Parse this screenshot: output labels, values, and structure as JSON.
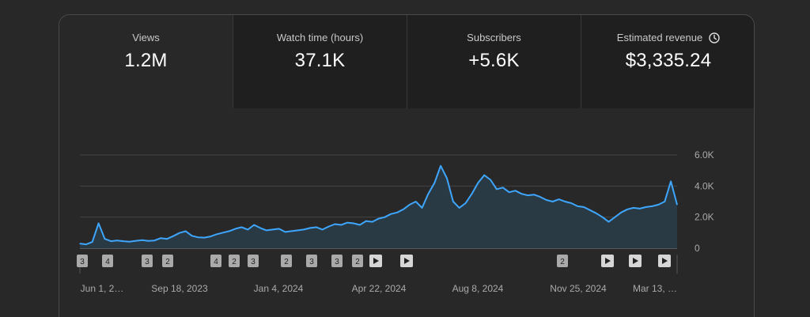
{
  "metrics": [
    {
      "label": "Views",
      "value": "1.2M"
    },
    {
      "label": "Watch time (hours)",
      "value": "37.1K"
    },
    {
      "label": "Subscribers",
      "value": "+5.6K"
    },
    {
      "label": "Estimated revenue",
      "value": "$3,335.24",
      "icon": "clock-icon"
    }
  ],
  "chart_data": {
    "type": "area",
    "series": [
      {
        "values": [
          300,
          250,
          400,
          1600,
          600,
          450,
          500,
          450,
          420,
          480,
          520,
          470,
          500,
          650,
          600,
          780,
          980,
          1100,
          800,
          700,
          680,
          760,
          900,
          1000,
          1100,
          1250,
          1350,
          1200,
          1500,
          1300,
          1150,
          1200,
          1250,
          1050,
          1100,
          1150,
          1200,
          1300,
          1350,
          1200,
          1400,
          1550,
          1500,
          1650,
          1600,
          1500,
          1750,
          1700,
          1900,
          2000,
          2200,
          2300,
          2500,
          2800,
          3000,
          2600,
          3500,
          4200,
          5300,
          4500,
          3000,
          2600,
          2900,
          3500,
          4200,
          4700,
          4400,
          3800,
          3900,
          3600,
          3700,
          3500,
          3400,
          3450,
          3300,
          3100,
          3000,
          3150,
          3000,
          2900,
          2700,
          2650,
          2450,
          2250,
          2000,
          1700,
          2000,
          2300,
          2500,
          2600,
          2550,
          2650,
          2700,
          2800,
          3000,
          4300,
          2800
        ]
      }
    ],
    "y_ticks": [
      "0",
      "2.0K",
      "4.0K",
      "6.0K"
    ],
    "ylim": [
      0,
      6000
    ],
    "x_tick_labels": [
      "Jun 1, 2…",
      "Sep 18, 2023",
      "Jan 4, 2024",
      "Apr 22, 2024",
      "Aug 8, 2024",
      "Nov 25, 2024",
      "Mar 13, …"
    ],
    "markers": [
      {
        "text": "3"
      },
      {
        "text": "4"
      },
      {
        "text": "3"
      },
      {
        "text": "2"
      },
      {
        "text": "4"
      },
      {
        "text": "2"
      },
      {
        "text": "3"
      },
      {
        "text": "2"
      },
      {
        "text": "3"
      },
      {
        "text": "3"
      },
      {
        "text": "2"
      },
      {
        "text": "",
        "kind": "play"
      },
      {
        "text": "",
        "kind": "play"
      },
      {
        "text": "2"
      },
      {
        "text": "",
        "kind": "play"
      },
      {
        "text": "",
        "kind": "play"
      },
      {
        "text": "",
        "kind": "play"
      }
    ],
    "grid": true,
    "line_color": "#3ea6ff",
    "fill_color": "#2a3a44"
  }
}
